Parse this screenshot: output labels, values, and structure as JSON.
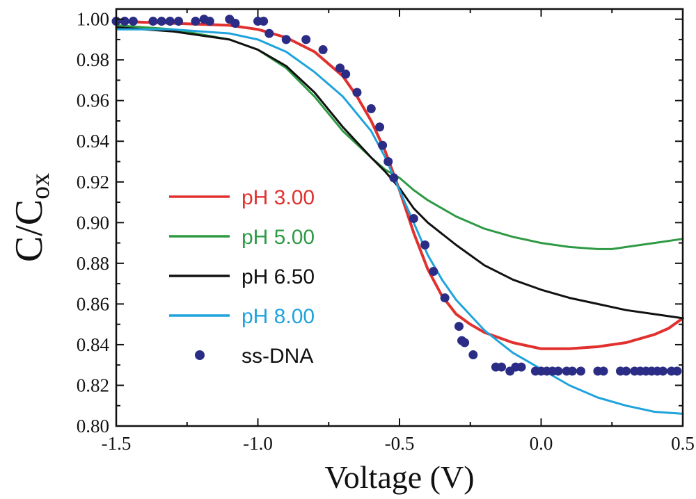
{
  "chart_data": {
    "type": "line",
    "title": "",
    "xlabel": "Voltage (V)",
    "ylabel_main": "C/C",
    "ylabel_sub": "ox",
    "xlim": [
      -1.5,
      0.5
    ],
    "ylim": [
      0.8,
      1.005
    ],
    "grid": false,
    "legend_position": "left-center",
    "x_ticks": [
      -1.5,
      -1.0,
      -0.5,
      0.0,
      0.5
    ],
    "x_tick_labels": [
      "-1.5",
      "-1.0",
      "-0.5",
      "0.0",
      "0.5"
    ],
    "y_ticks": [
      0.8,
      0.82,
      0.84,
      0.86,
      0.88,
      0.9,
      0.92,
      0.94,
      0.96,
      0.98,
      1.0
    ],
    "y_tick_labels": [
      "0.80",
      "0.82",
      "0.84",
      "0.86",
      "0.88",
      "0.90",
      "0.92",
      "0.94",
      "0.96",
      "0.98",
      "1.00"
    ],
    "series": [
      {
        "name": "pH 3.00",
        "style": "line",
        "color": "#e0312f",
        "x": [
          -1.5,
          -1.3,
          -1.1,
          -1.0,
          -0.9,
          -0.8,
          -0.7,
          -0.65,
          -0.6,
          -0.55,
          -0.5,
          -0.45,
          -0.4,
          -0.35,
          -0.3,
          -0.25,
          -0.2,
          -0.1,
          0.0,
          0.1,
          0.2,
          0.3,
          0.4,
          0.45,
          0.5
        ],
        "y": [
          0.999,
          0.998,
          0.997,
          0.995,
          0.991,
          0.984,
          0.972,
          0.962,
          0.95,
          0.935,
          0.916,
          0.895,
          0.877,
          0.864,
          0.855,
          0.85,
          0.846,
          0.841,
          0.838,
          0.838,
          0.839,
          0.841,
          0.845,
          0.848,
          0.853
        ]
      },
      {
        "name": "pH 5.00",
        "style": "line",
        "color": "#2e9a44",
        "x": [
          -1.5,
          -1.3,
          -1.1,
          -1.0,
          -0.9,
          -0.8,
          -0.7,
          -0.6,
          -0.55,
          -0.5,
          -0.45,
          -0.4,
          -0.3,
          -0.2,
          -0.1,
          0.0,
          0.1,
          0.2,
          0.25,
          0.3,
          0.4,
          0.5
        ],
        "y": [
          0.997,
          0.995,
          0.99,
          0.985,
          0.976,
          0.962,
          0.945,
          0.932,
          0.926,
          0.922,
          0.916,
          0.911,
          0.903,
          0.897,
          0.893,
          0.89,
          0.888,
          0.887,
          0.887,
          0.888,
          0.89,
          0.892
        ]
      },
      {
        "name": "pH 6.50",
        "style": "line",
        "color": "#111111",
        "x": [
          -1.5,
          -1.3,
          -1.1,
          -1.0,
          -0.9,
          -0.8,
          -0.7,
          -0.6,
          -0.55,
          -0.5,
          -0.45,
          -0.4,
          -0.3,
          -0.2,
          -0.1,
          0.0,
          0.1,
          0.2,
          0.3,
          0.4,
          0.5
        ],
        "y": [
          0.996,
          0.994,
          0.99,
          0.985,
          0.977,
          0.964,
          0.947,
          0.932,
          0.925,
          0.917,
          0.907,
          0.9,
          0.889,
          0.879,
          0.872,
          0.867,
          0.863,
          0.86,
          0.857,
          0.855,
          0.853
        ]
      },
      {
        "name": "pH 8.00",
        "style": "line",
        "color": "#1fa3dc",
        "x": [
          -1.5,
          -1.3,
          -1.1,
          -1.0,
          -0.9,
          -0.8,
          -0.7,
          -0.6,
          -0.55,
          -0.5,
          -0.45,
          -0.4,
          -0.35,
          -0.3,
          -0.2,
          -0.1,
          0.0,
          0.1,
          0.2,
          0.3,
          0.4,
          0.5
        ],
        "y": [
          0.995,
          0.995,
          0.993,
          0.99,
          0.984,
          0.974,
          0.962,
          0.945,
          0.932,
          0.916,
          0.9,
          0.884,
          0.872,
          0.862,
          0.847,
          0.836,
          0.828,
          0.82,
          0.814,
          0.81,
          0.807,
          0.806
        ]
      },
      {
        "name": "ss-DNA",
        "style": "markers",
        "color": "#2b2c86",
        "x": [
          -1.5,
          -1.47,
          -1.44,
          -1.37,
          -1.34,
          -1.31,
          -1.28,
          -1.22,
          -1.19,
          -1.17,
          -1.1,
          -1.08,
          -1.0,
          -0.98,
          -0.96,
          -0.9,
          -0.83,
          -0.77,
          -0.71,
          -0.69,
          -0.65,
          -0.6,
          -0.57,
          -0.56,
          -0.54,
          -0.52,
          -0.45,
          -0.41,
          -0.38,
          -0.34,
          -0.29,
          -0.28,
          -0.27,
          -0.24,
          -0.16,
          -0.14,
          -0.11,
          -0.09,
          -0.07,
          -0.02,
          0.0,
          0.02,
          0.04,
          0.06,
          0.09,
          0.11,
          0.14,
          0.2,
          0.22,
          0.28,
          0.3,
          0.33,
          0.35,
          0.37,
          0.39,
          0.41,
          0.43,
          0.46,
          0.48
        ],
        "y": [
          0.999,
          0.999,
          0.999,
          0.999,
          0.999,
          0.999,
          0.999,
          0.999,
          1.0,
          0.999,
          1.0,
          0.998,
          0.999,
          0.999,
          0.993,
          0.99,
          0.99,
          0.985,
          0.976,
          0.973,
          0.964,
          0.956,
          0.947,
          0.938,
          0.93,
          0.922,
          0.902,
          0.889,
          0.876,
          0.863,
          0.849,
          0.842,
          0.841,
          0.835,
          0.829,
          0.829,
          0.827,
          0.829,
          0.829,
          0.827,
          0.827,
          0.827,
          0.827,
          0.827,
          0.827,
          0.827,
          0.827,
          0.827,
          0.827,
          0.827,
          0.827,
          0.827,
          0.827,
          0.827,
          0.827,
          0.827,
          0.827,
          0.827,
          0.827
        ]
      }
    ]
  }
}
